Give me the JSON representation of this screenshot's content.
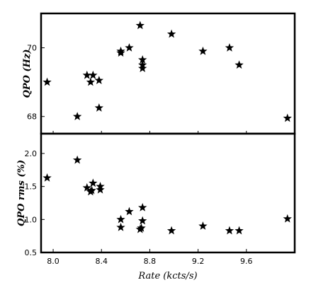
{
  "chart_data": [
    {
      "type": "scatter",
      "marker": "star",
      "ylabel": "QPO (Hz)",
      "xlim": [
        7.9,
        10.0
      ],
      "ylim": [
        67.5,
        71.0
      ],
      "yticks": [
        68,
        70
      ],
      "points": [
        {
          "x": 7.95,
          "y": 69.0
        },
        {
          "x": 8.2,
          "y": 68.0
        },
        {
          "x": 8.28,
          "y": 69.2
        },
        {
          "x": 8.31,
          "y": 69.0
        },
        {
          "x": 8.33,
          "y": 69.2
        },
        {
          "x": 8.38,
          "y": 69.05
        },
        {
          "x": 8.38,
          "y": 68.25
        },
        {
          "x": 8.56,
          "y": 69.85
        },
        {
          "x": 8.56,
          "y": 69.9
        },
        {
          "x": 8.63,
          "y": 70.0
        },
        {
          "x": 8.72,
          "y": 70.65
        },
        {
          "x": 8.74,
          "y": 69.65
        },
        {
          "x": 8.74,
          "y": 69.5
        },
        {
          "x": 8.74,
          "y": 69.4
        },
        {
          "x": 8.98,
          "y": 70.4
        },
        {
          "x": 9.24,
          "y": 69.9
        },
        {
          "x": 9.46,
          "y": 70.0
        },
        {
          "x": 9.54,
          "y": 69.5
        },
        {
          "x": 9.94,
          "y": 67.95
        }
      ]
    },
    {
      "type": "scatter",
      "marker": "star",
      "ylabel": "QPO rms (%)",
      "xlabel": "Rate (kcts/s)",
      "xlim": [
        7.9,
        10.0
      ],
      "ylim": [
        0.5,
        2.3
      ],
      "yticks": [
        "0.5",
        "1.0",
        "1.5",
        "2.0"
      ],
      "xticks": [
        "8.0",
        "8.4",
        "8.8",
        "9.2",
        "9.6"
      ],
      "points": [
        {
          "x": 7.95,
          "y": 1.63
        },
        {
          "x": 8.2,
          "y": 1.9
        },
        {
          "x": 8.28,
          "y": 1.48
        },
        {
          "x": 8.31,
          "y": 1.42
        },
        {
          "x": 8.33,
          "y": 1.55
        },
        {
          "x": 8.32,
          "y": 1.44
        },
        {
          "x": 8.39,
          "y": 1.45
        },
        {
          "x": 8.39,
          "y": 1.5
        },
        {
          "x": 8.56,
          "y": 1.0
        },
        {
          "x": 8.56,
          "y": 0.88
        },
        {
          "x": 8.63,
          "y": 1.12
        },
        {
          "x": 8.72,
          "y": 0.85
        },
        {
          "x": 8.73,
          "y": 0.87
        },
        {
          "x": 8.74,
          "y": 1.18
        },
        {
          "x": 8.74,
          "y": 0.98
        },
        {
          "x": 8.98,
          "y": 0.83
        },
        {
          "x": 9.24,
          "y": 0.9
        },
        {
          "x": 9.46,
          "y": 0.83
        },
        {
          "x": 9.54,
          "y": 0.83
        },
        {
          "x": 9.94,
          "y": 1.01
        }
      ]
    }
  ]
}
